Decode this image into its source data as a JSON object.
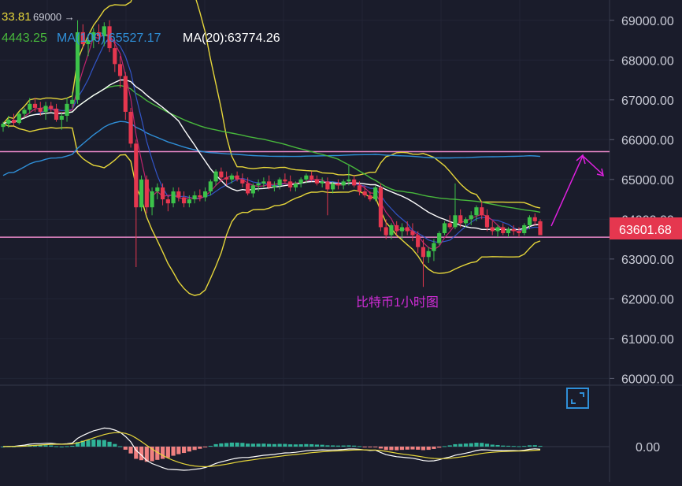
{
  "header": {
    "top_value": "33.81",
    "top_alert": "69000 →",
    "ma_a_label": "4443.25",
    "ma100_label": "MA(100):65527.17",
    "ma20_label": "MA(20):63774.26"
  },
  "current_price": "63601.68",
  "annotation": "比特币1小时图",
  "macd_zero_label": "0.00",
  "colors": {
    "background": "#1a1c2b",
    "up_candle": "#3cc24a",
    "down_candle": "#e5374f",
    "ma_white": "#ffffff",
    "ma100_blue": "#2f8fd8",
    "ma_green": "#48b83c",
    "bollinger_yellow": "#e6d63a",
    "ma_blue_short": "#3255c8",
    "ma_magenta_short": "#c0246e",
    "level_lines": "#e888c8",
    "price_tag": "#e5374f",
    "arrow_magenta": "#e020e0",
    "macd_pos": "#2fb398",
    "macd_neg": "#f08080"
  },
  "chart_data": {
    "type": "candlestick",
    "title": "比特币1小时图",
    "y_axis": {
      "ticks": [
        "69000.00",
        "68000.00",
        "67000.00",
        "66000.00",
        "65000.00",
        "64000.00",
        "63000.00",
        "62000.00",
        "61000.00",
        "60000.00"
      ],
      "ylim": [
        59800,
        69500
      ]
    },
    "horizontal_levels": [
      65700,
      63550
    ],
    "last_price": 63601.68,
    "candles": [
      [
        66320,
        66450,
        66200,
        66400
      ],
      [
        66400,
        66600,
        66300,
        66500
      ],
      [
        66500,
        66650,
        66350,
        66420
      ],
      [
        66420,
        66700,
        66380,
        66650
      ],
      [
        66650,
        66800,
        66550,
        66750
      ],
      [
        66750,
        67050,
        66650,
        66900
      ],
      [
        66900,
        67050,
        66700,
        66800
      ],
      [
        66800,
        66950,
        66600,
        66700
      ],
      [
        66700,
        66950,
        66500,
        66850
      ],
      [
        66850,
        66950,
        66700,
        66780
      ],
      [
        66780,
        66900,
        66450,
        66500
      ],
      [
        66500,
        66700,
        66250,
        66600
      ],
      [
        66600,
        67050,
        66450,
        66900
      ],
      [
        66900,
        67200,
        66800,
        67000
      ],
      [
        67000,
        69000,
        66900,
        68700
      ],
      [
        68700,
        68900,
        68300,
        68400
      ],
      [
        68400,
        68600,
        68100,
        68500
      ],
      [
        68500,
        68800,
        68300,
        68700
      ],
      [
        68700,
        68900,
        68400,
        68600
      ],
      [
        68600,
        68950,
        68350,
        68850
      ],
      [
        68850,
        69000,
        68200,
        68300
      ],
      [
        68300,
        68500,
        67700,
        67900
      ],
      [
        67900,
        68100,
        67300,
        67600
      ],
      [
        67600,
        67700,
        66500,
        66700
      ],
      [
        66700,
        66800,
        65800,
        65900
      ],
      [
        65900,
        66000,
        62800,
        64300
      ],
      [
        64300,
        65100,
        64200,
        65000
      ],
      [
        65000,
        65100,
        64150,
        64300
      ],
      [
        64300,
        64800,
        64100,
        64700
      ],
      [
        64700,
        64900,
        64500,
        64800
      ],
      [
        64800,
        64900,
        64350,
        64500
      ],
      [
        64500,
        64600,
        64200,
        64400
      ],
      [
        64400,
        64800,
        64300,
        64700
      ],
      [
        64700,
        64800,
        64450,
        64550
      ],
      [
        64550,
        64700,
        64300,
        64400
      ],
      [
        64400,
        64600,
        64300,
        64500
      ],
      [
        64500,
        64700,
        64400,
        64600
      ],
      [
        64600,
        64750,
        64450,
        64550
      ],
      [
        64550,
        64800,
        64450,
        64700
      ],
      [
        64700,
        65000,
        64600,
        64950
      ],
      [
        64950,
        65250,
        64850,
        65200
      ],
      [
        65200,
        65300,
        64950,
        65050
      ],
      [
        65050,
        65200,
        64850,
        65000
      ],
      [
        65000,
        65150,
        64900,
        65100
      ],
      [
        65100,
        65200,
        64950,
        65000
      ],
      [
        65000,
        65150,
        64800,
        64900
      ],
      [
        64900,
        65050,
        64600,
        64650
      ],
      [
        64650,
        64900,
        64550,
        64850
      ],
      [
        64850,
        65000,
        64700,
        64900
      ],
      [
        64900,
        65050,
        64800,
        64950
      ],
      [
        64950,
        65100,
        64750,
        64800
      ],
      [
        64800,
        64950,
        64700,
        64850
      ],
      [
        64850,
        65050,
        64750,
        65000
      ],
      [
        65000,
        65150,
        64900,
        64950
      ],
      [
        64950,
        65100,
        64700,
        64800
      ],
      [
        64800,
        64950,
        64700,
        64900
      ],
      [
        64900,
        65050,
        64800,
        65000
      ],
      [
        65000,
        65150,
        64900,
        65100
      ],
      [
        65100,
        65200,
        64950,
        65000
      ],
      [
        65000,
        65100,
        64850,
        64900
      ],
      [
        64900,
        65050,
        64800,
        64950
      ],
      [
        64950,
        65050,
        64100,
        64750
      ],
      [
        64750,
        64950,
        64650,
        64900
      ],
      [
        64900,
        65000,
        64750,
        64850
      ],
      [
        64850,
        65000,
        64750,
        64950
      ],
      [
        64950,
        65350,
        64850,
        65000
      ],
      [
        65000,
        65100,
        64800,
        64850
      ],
      [
        64850,
        64950,
        64600,
        64700
      ],
      [
        64700,
        64850,
        64550,
        64600
      ],
      [
        64600,
        64700,
        64450,
        64500
      ],
      [
        64500,
        64850,
        64450,
        64800
      ],
      [
        64800,
        64900,
        63700,
        63800
      ],
      [
        63800,
        64000,
        63500,
        63600
      ],
      [
        63600,
        63900,
        63500,
        63850
      ],
      [
        63850,
        63950,
        63600,
        63700
      ],
      [
        63700,
        63900,
        63500,
        63800
      ],
      [
        63800,
        63950,
        63600,
        63700
      ],
      [
        63700,
        63900,
        63450,
        63600
      ],
      [
        63600,
        63700,
        63150,
        63300
      ],
      [
        63300,
        63500,
        62300,
        63050
      ],
      [
        63050,
        63300,
        62900,
        63200
      ],
      [
        63200,
        63500,
        62950,
        63400
      ],
      [
        63400,
        63700,
        63350,
        63650
      ],
      [
        63650,
        63950,
        63600,
        63900
      ],
      [
        63900,
        64100,
        63750,
        63800
      ],
      [
        63800,
        64900,
        63750,
        64100
      ],
      [
        64100,
        64250,
        63800,
        63900
      ],
      [
        63900,
        64050,
        63800,
        64000
      ],
      [
        64000,
        64200,
        63850,
        64100
      ],
      [
        64100,
        64350,
        63950,
        64300
      ],
      [
        64300,
        64450,
        64000,
        64100
      ],
      [
        64100,
        64250,
        63700,
        63800
      ],
      [
        63800,
        63950,
        63600,
        63700
      ],
      [
        63700,
        63850,
        63550,
        63800
      ],
      [
        63800,
        63900,
        63600,
        63650
      ],
      [
        63650,
        63800,
        63550,
        63750
      ],
      [
        63750,
        63850,
        63600,
        63700
      ],
      [
        63700,
        63800,
        63550,
        63650
      ],
      [
        63650,
        63900,
        63600,
        63850
      ],
      [
        63850,
        64100,
        63750,
        64050
      ],
      [
        64050,
        64150,
        63850,
        63950
      ],
      [
        63950,
        64000,
        63600,
        63600
      ]
    ],
    "indicators": {
      "macd_zero_label": "0.00"
    }
  }
}
